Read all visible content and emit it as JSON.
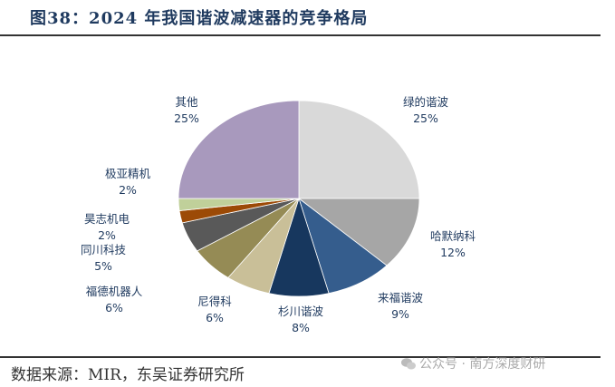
{
  "figure": {
    "title": "图38：2024 年我国谐波减速器的竞争格局",
    "source": "数据来源：MIR，东吴证券研究所",
    "watermark": "公众号 · 南方深度财研"
  },
  "chart_data": {
    "type": "pie",
    "title": "2024 年我国谐波减速器的竞争格局",
    "unit": "%",
    "categories": [
      "绿的谐波",
      "哈默纳科",
      "来福谐波",
      "杉川谐波",
      "尼得科",
      "福德机器人",
      "同川科技",
      "昊志机电",
      "极亚精机",
      "其他"
    ],
    "values": [
      25,
      12,
      9,
      8,
      6,
      6,
      5,
      2,
      2,
      25
    ],
    "colors": [
      "#d9d9d9",
      "#a6a6a6",
      "#355d8d",
      "#17375e",
      "#c9bf98",
      "#958b55",
      "#595959",
      "#9c4a06",
      "#c0d09a",
      "#a899bd"
    ],
    "start_angle": "12 o'clock",
    "direction": "clockwise"
  },
  "labels": [
    {
      "name": "绿的谐波",
      "pct": "25%"
    },
    {
      "name": "哈默纳科",
      "pct": "12%"
    },
    {
      "name": "来福谐波",
      "pct": "9%"
    },
    {
      "name": "杉川谐波",
      "pct": "8%"
    },
    {
      "name": "尼得科",
      "pct": "6%"
    },
    {
      "name": "福德机器人",
      "pct": "6%"
    },
    {
      "name": "同川科技",
      "pct": "5%"
    },
    {
      "name": "昊志机电",
      "pct": "2%"
    },
    {
      "name": "极亚精机",
      "pct": "2%"
    },
    {
      "name": "其他",
      "pct": "25%"
    }
  ]
}
